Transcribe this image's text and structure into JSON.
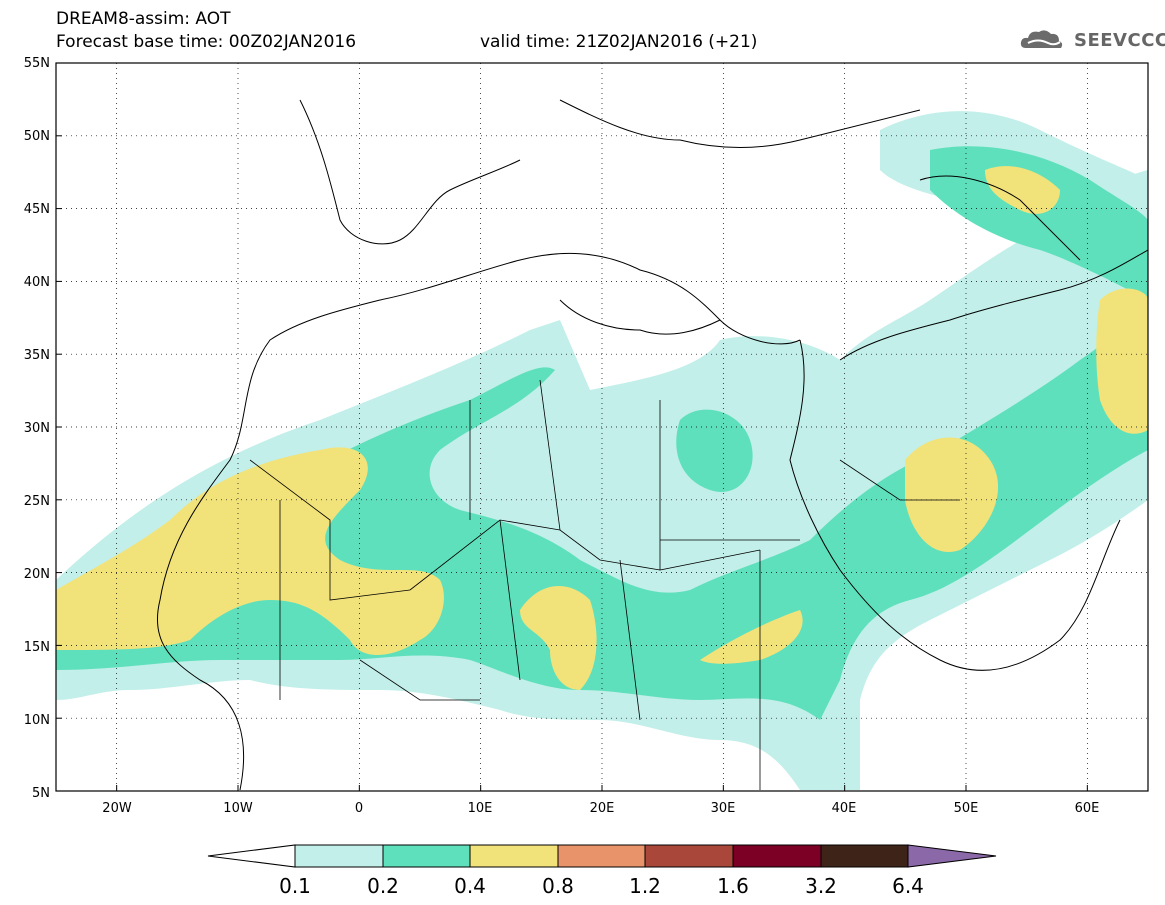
{
  "header": {
    "title": "DREAM8-assim: AOT",
    "base_time": "Forecast base time: 00Z02JAN2016",
    "valid_time": "valid time: 21Z02JAN2016 (+21)"
  },
  "logo": {
    "text": "SEEVCCC",
    "icon": "cloud-icon"
  },
  "map": {
    "lon_range": [
      -25,
      65
    ],
    "lat_range": [
      5,
      55
    ],
    "lat_ticks": [
      "55N",
      "50N",
      "45N",
      "40N",
      "35N",
      "30N",
      "25N",
      "20N",
      "15N",
      "10N",
      "5N"
    ],
    "lon_ticks": [
      "20W",
      "10W",
      "0",
      "10E",
      "20E",
      "30E",
      "40E",
      "50E",
      "60E"
    ],
    "grid": "dotted"
  },
  "legend": {
    "levels": [
      "0.1",
      "0.2",
      "0.4",
      "0.8",
      "1.2",
      "1.6",
      "3.2",
      "6.4"
    ],
    "colors": [
      "#ffffff",
      "#c2efe9",
      "#5fe0bc",
      "#f2e27a",
      "#e9936a",
      "#a9473b",
      "#7c0025",
      "#3e2418",
      "#8b68a8"
    ]
  }
}
